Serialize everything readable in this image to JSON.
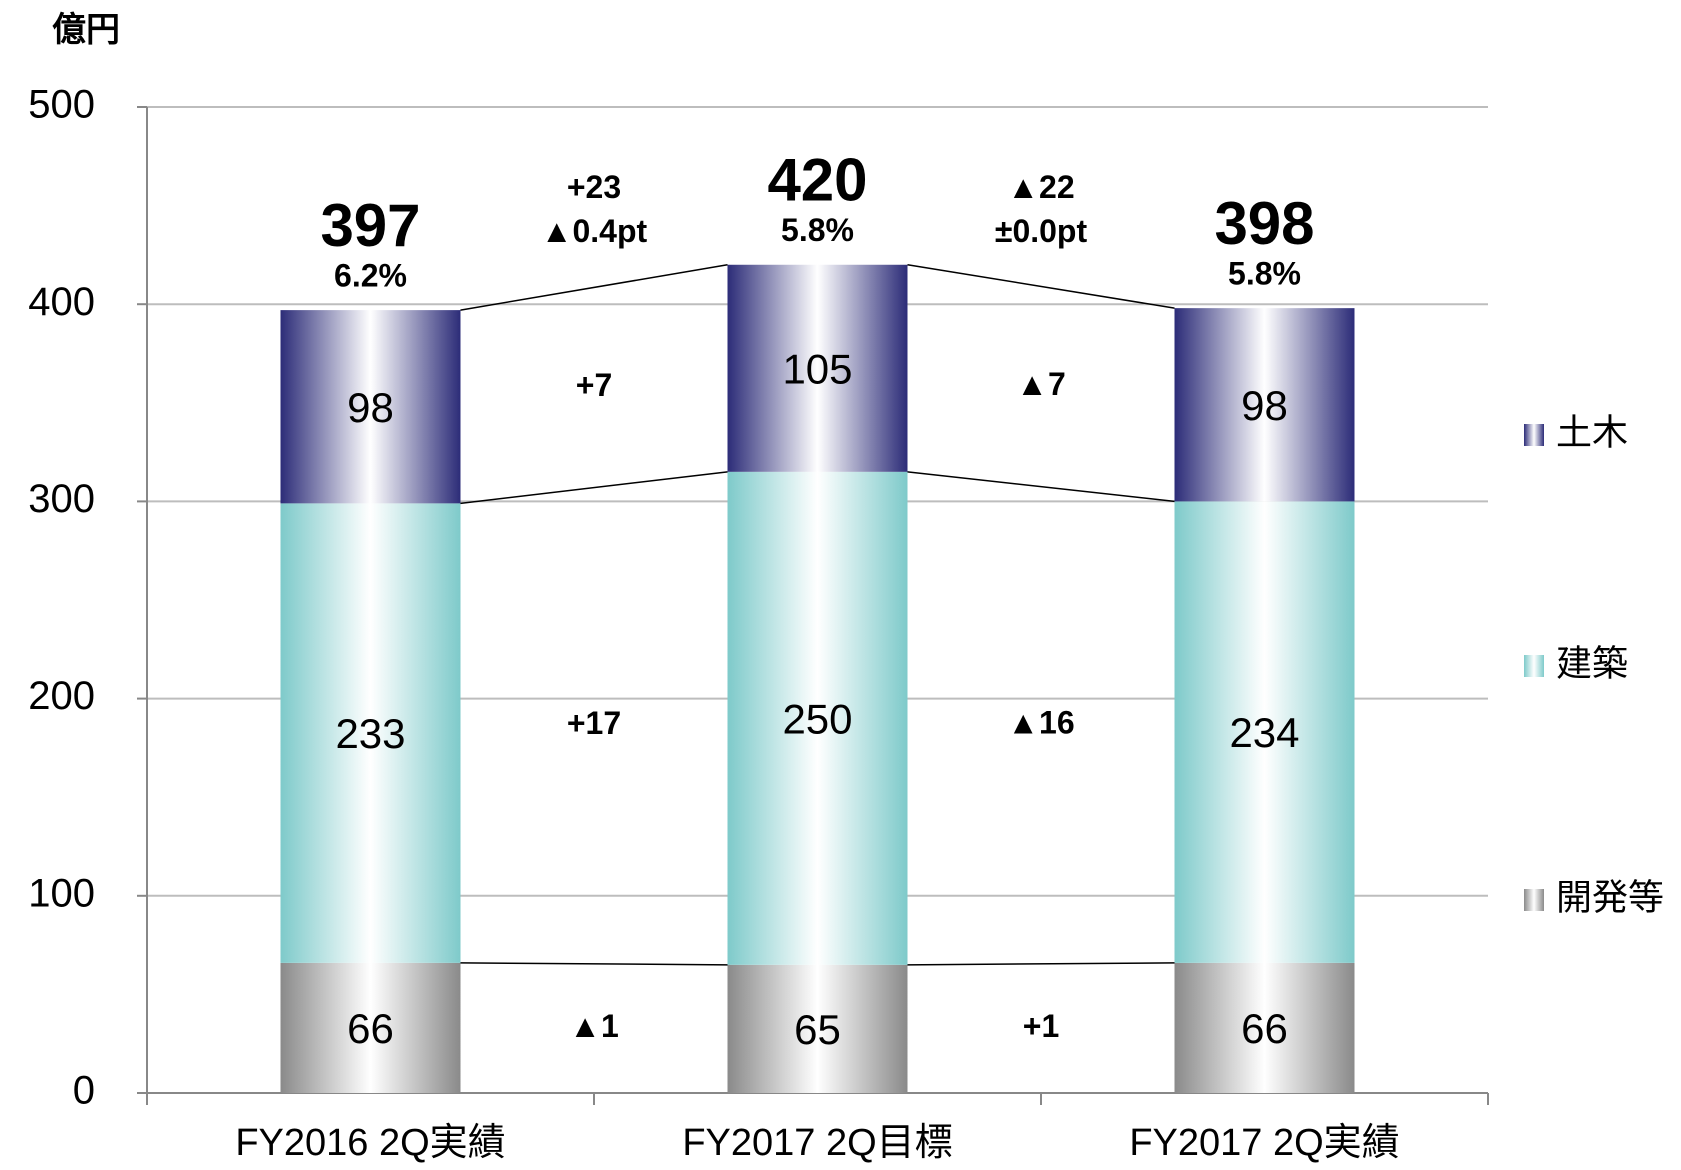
{
  "chart_data": {
    "type": "stacked_bar",
    "y_axis_label": "億円",
    "categories": [
      "FY2016 2Q実績",
      "FY2017 2Q目標",
      "FY2017 2Q実績"
    ],
    "series": [
      {
        "name": "開発等",
        "color": "#8a8a8a",
        "values": [
          66,
          65,
          66
        ]
      },
      {
        "name": "建築",
        "color": "#7ecaca",
        "values": [
          233,
          250,
          234
        ]
      },
      {
        "name": "土木",
        "color": "#2c2c78",
        "values": [
          98,
          105,
          98
        ]
      }
    ],
    "totals": [
      397,
      420,
      398
    ],
    "margins": [
      "6.2%",
      "5.8%",
      "5.8%"
    ],
    "changes": [
      {
        "total": "+23",
        "margin": "▲0.4pt",
        "segments": [
          "▲1",
          "+17",
          "+7"
        ]
      },
      {
        "total": "▲22",
        "margin": "±0.0pt",
        "segments": [
          "+1",
          "▲16",
          "▲7"
        ]
      }
    ],
    "ylim": [
      0,
      500
    ],
    "yticks": [
      0,
      100,
      200,
      300,
      400,
      500
    ],
    "grid": true,
    "legend": "right"
  }
}
